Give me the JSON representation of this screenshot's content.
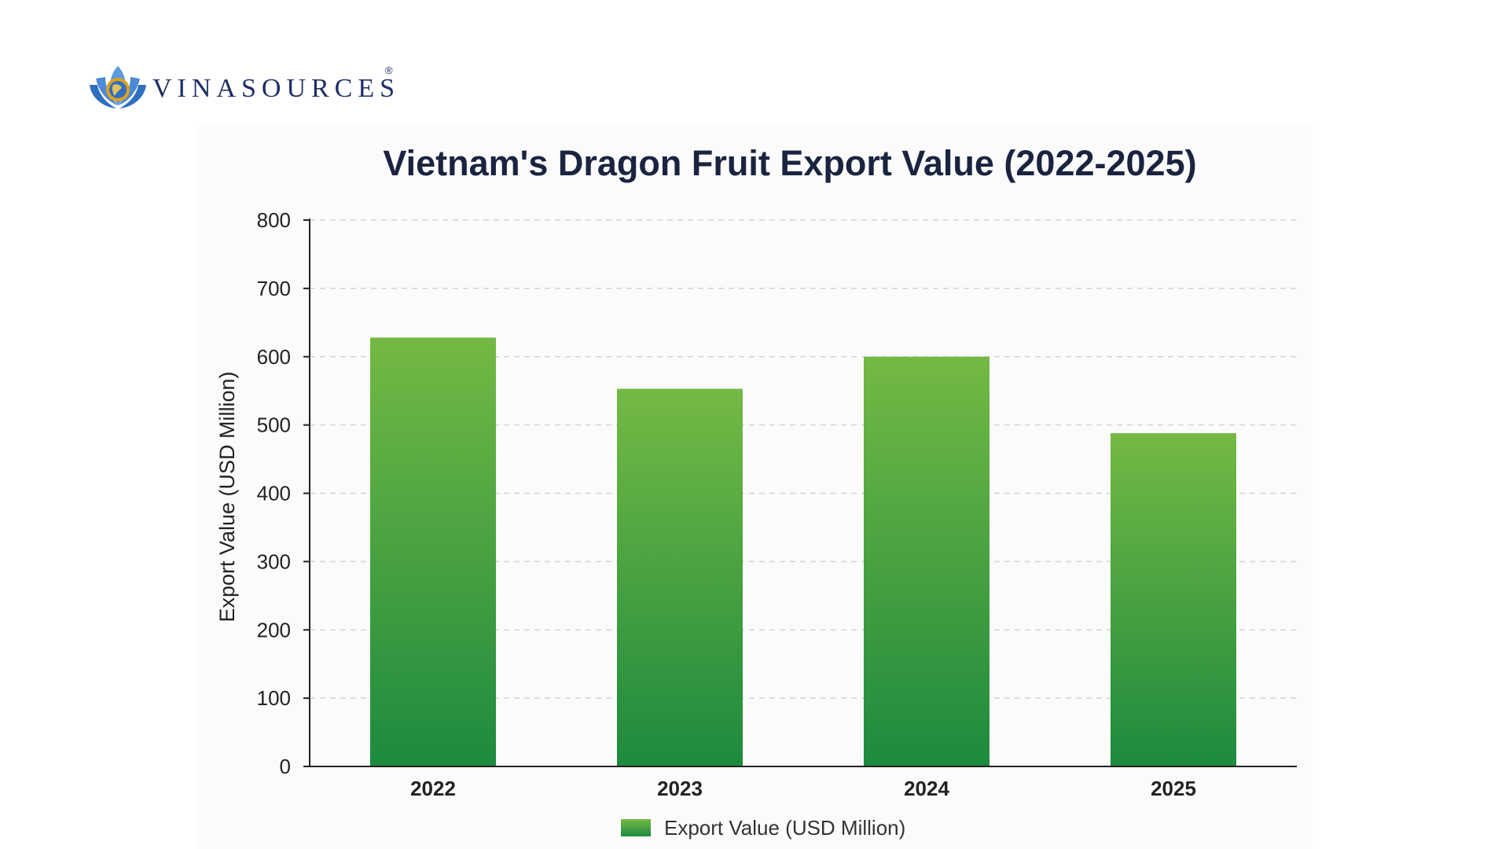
{
  "brand": {
    "name": "VINASOURCES",
    "registered": "®",
    "colors": {
      "navy": "#1d2e63",
      "blue": "#2f6fc0",
      "gold": "#e0a020"
    }
  },
  "chart_data": {
    "type": "bar",
    "title": "Vietnam's Dragon Fruit Export Value (2022-2025)",
    "xlabel": "",
    "ylabel": "Export Value (USD Million)",
    "categories": [
      "2022",
      "2023",
      "2024",
      "2025"
    ],
    "series": [
      {
        "name": "Export Value (USD Million)",
        "values": [
          628,
          553,
          600,
          488
        ]
      }
    ],
    "ylim": [
      0,
      800
    ],
    "yticks": [
      0,
      100,
      200,
      300,
      400,
      500,
      600,
      700,
      800
    ],
    "grid": true,
    "legend": "bottom-center",
    "colors": {
      "bar_top": "#74b944",
      "bar_bottom": "#1d8a3e"
    }
  }
}
